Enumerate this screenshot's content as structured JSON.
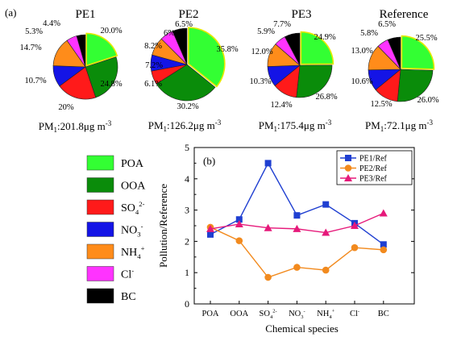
{
  "panel_a_label": "(a)",
  "panel_b_label": "(b)",
  "colors": {
    "POA": "#33ff33",
    "OOA": "#0a8c0a",
    "SO4": "#ff1a1a",
    "NO3": "#1414e6",
    "NH4": "#ff8c1a",
    "Cl": "#ff33ff",
    "BC": "#000000",
    "PE1": "#1f3fd1",
    "PE2": "#f28a1e",
    "PE3": "#e6197a"
  },
  "legend_a": [
    {
      "key": "POA",
      "label": "POA"
    },
    {
      "key": "OOA",
      "label": "OOA"
    },
    {
      "key": "SO4",
      "label": "SO",
      "sub": "4",
      "sup": "2-"
    },
    {
      "key": "NO3",
      "label": "NO",
      "sub": "3",
      "sup": "-"
    },
    {
      "key": "NH4",
      "label": "NH",
      "sub": "4",
      "sup": "+"
    },
    {
      "key": "Cl",
      "label": "Cl",
      "sub": "",
      "sup": "-"
    },
    {
      "key": "BC",
      "label": "BC"
    }
  ],
  "chart_data": [
    {
      "type": "pie",
      "title": "PE1",
      "caption": {
        "pre": "PM",
        "sub": "1",
        "post": ":201.8μg m",
        "sup": "-3"
      },
      "categories": [
        "POA",
        "OOA",
        "SO4",
        "NO3",
        "NH4",
        "Cl",
        "BC"
      ],
      "values": [
        20.0,
        24.8,
        20,
        10.7,
        14.7,
        5.3,
        4.4
      ],
      "labels": [
        "20.0%",
        "24.8%",
        "20%",
        "10.7%",
        "14.7%",
        "5.3%",
        "4.4%"
      ]
    },
    {
      "type": "pie",
      "title": "PE2",
      "caption": {
        "pre": "PM",
        "sub": "1",
        "post": ":126.2μg m",
        "sup": "-3"
      },
      "categories": [
        "POA",
        "OOA",
        "SO4",
        "NO3",
        "NH4",
        "Cl",
        "BC"
      ],
      "values": [
        35.8,
        30.2,
        6.1,
        7.2,
        8.2,
        6,
        6.5
      ],
      "labels": [
        "35.8%",
        "30.2%",
        "6.1%",
        "7.2%",
        "8.2%",
        "6%",
        "6.5%"
      ]
    },
    {
      "type": "pie",
      "title": "PE3",
      "caption": {
        "pre": "PM",
        "sub": "1",
        "post": ":175.4μg m",
        "sup": "-3"
      },
      "categories": [
        "POA",
        "OOA",
        "SO4",
        "NO3",
        "NH4",
        "Cl",
        "BC"
      ],
      "values": [
        24.9,
        26.8,
        12.4,
        10.3,
        12.0,
        5.9,
        7.7
      ],
      "labels": [
        "24.9%",
        "26.8%",
        "12.4%",
        "10.3%",
        "12.0%",
        "5.9%",
        "7.7%"
      ]
    },
    {
      "type": "pie",
      "title": "Reference",
      "caption": {
        "pre": "PM",
        "sub": "1",
        "post": ":72.1μg m",
        "sup": "-3"
      },
      "categories": [
        "POA",
        "OOA",
        "SO4",
        "NO3",
        "NH4",
        "Cl",
        "BC"
      ],
      "values": [
        25.5,
        26.0,
        12.5,
        10.6,
        13.0,
        5.8,
        6.5
      ],
      "labels": [
        "25.5%",
        "26.0%",
        "12.5%",
        "10.6%",
        "13.0%",
        "5.8%",
        "6.5%"
      ]
    },
    {
      "type": "line",
      "xlabel": "Chemical species",
      "ylabel": "Pollution/Reference",
      "ylim": [
        0,
        5
      ],
      "yticks": [
        0,
        1,
        2,
        3,
        4,
        5
      ],
      "categories": [
        {
          "label": "POA"
        },
        {
          "label": "OOA"
        },
        {
          "label": "SO",
          "sub": "4",
          "sup": "2-"
        },
        {
          "label": "NO",
          "sub": "3",
          "sup": "-"
        },
        {
          "label": "NH",
          "sub": "4",
          "sup": "+"
        },
        {
          "label": "Cl",
          "sub": "",
          "sup": "-"
        },
        {
          "label": "BC"
        }
      ],
      "legend_position": "top-right",
      "series": [
        {
          "name": "PE1/Ref",
          "color_key": "PE1",
          "marker": "square",
          "values": [
            2.22,
            2.7,
            4.5,
            2.83,
            3.18,
            2.58,
            1.9
          ]
        },
        {
          "name": "PE2/Ref",
          "color_key": "PE2",
          "marker": "circle",
          "values": [
            2.45,
            2.02,
            0.85,
            1.17,
            1.08,
            1.8,
            1.73
          ]
        },
        {
          "name": "PE3/Ref",
          "color_key": "PE3",
          "marker": "triangle",
          "values": [
            2.4,
            2.55,
            2.43,
            2.4,
            2.28,
            2.5,
            2.9
          ]
        }
      ]
    }
  ]
}
